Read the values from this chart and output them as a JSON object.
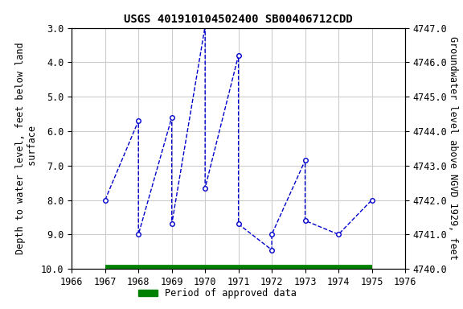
{
  "title": "USGS 401910104502400 SB00406712CDD",
  "x_data": [
    1967,
    1968,
    1968,
    1969,
    1969,
    1970,
    1970,
    1971,
    1971,
    1972,
    1972,
    1973,
    1973,
    1974,
    1975
  ],
  "y_data": [
    8.0,
    5.7,
    9.0,
    5.6,
    8.7,
    2.95,
    7.65,
    3.8,
    8.7,
    9.45,
    9.0,
    6.85,
    8.6,
    9.0,
    8.0
  ],
  "xlim": [
    1966,
    1976
  ],
  "ylim_left": [
    10.0,
    3.0
  ],
  "ylim_right": [
    4740.0,
    4747.0
  ],
  "left_yticks": [
    3.0,
    4.0,
    5.0,
    6.0,
    7.0,
    8.0,
    9.0,
    10.0
  ],
  "right_yticks": [
    4740.0,
    4741.0,
    4742.0,
    4743.0,
    4744.0,
    4745.0,
    4746.0,
    4747.0
  ],
  "xticks": [
    1966,
    1967,
    1968,
    1969,
    1970,
    1971,
    1972,
    1973,
    1974,
    1975,
    1976
  ],
  "left_ylabel": "Depth to water level, feet below land\n surface",
  "right_ylabel": "Groundwater level above NGVD 1929, feet",
  "line_color": "#0000cc",
  "marker_color": "#0000cc",
  "bg_color": "#ffffff",
  "plot_bg_color": "#ffffff",
  "grid_color": "#cccccc",
  "green_bar_color": "#008000",
  "legend_label": "Period of approved data",
  "green_bar_x_start": 1967.0,
  "green_bar_x_end": 1975.0,
  "title_fontsize": 10,
  "label_fontsize": 8.5,
  "tick_fontsize": 8.5
}
